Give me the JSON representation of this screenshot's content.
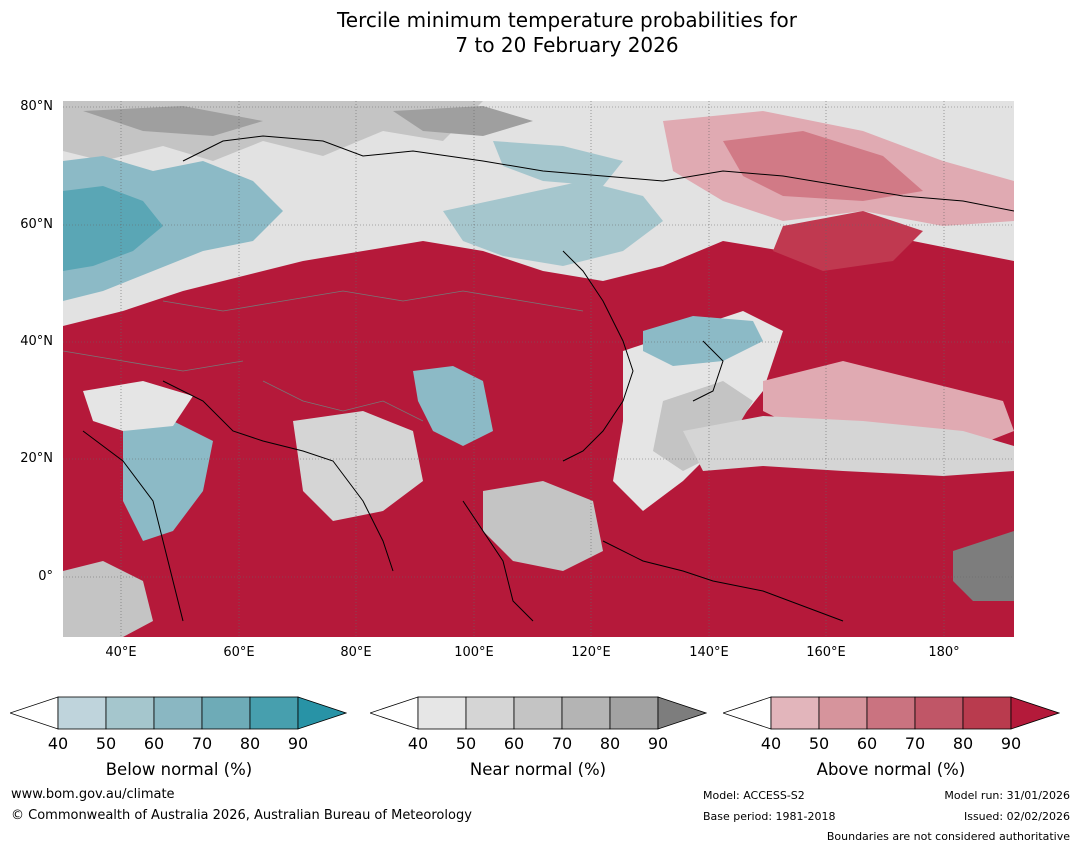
{
  "title_line1": "Tercile minimum temperature probabilities for",
  "title_line2": "7 to 20 February 2026",
  "map": {
    "lat_labels": [
      "80°N",
      "60°N",
      "40°N",
      "20°N",
      "0°"
    ],
    "lon_labels": [
      "40°E",
      "60°E",
      "80°E",
      "100°E",
      "120°E",
      "140°E",
      "160°E",
      "180°"
    ],
    "colors": {
      "above_90": "#b5193a",
      "above_80": "#c03950",
      "above_70": "#c75968",
      "above_60": "#d17a86",
      "above_50": "#e0aab2",
      "near_low": "#e5e5e5",
      "near_mid": "#c4c4c4",
      "near_high": "#9f9f9f",
      "near_max": "#7d7d7d",
      "below_50": "#c0d5dc",
      "below_70": "#8cbac6",
      "below_90": "#3c9aad"
    }
  },
  "colorbars": [
    {
      "label": "Below normal (%)",
      "ticks": [
        "40",
        "50",
        "60",
        "70",
        "80",
        "90"
      ],
      "colors": [
        "#ffffff",
        "#bfd4dc",
        "#a5c6cd",
        "#8ab7c2",
        "#6eabb7",
        "#479fae",
        "#2893a6"
      ]
    },
    {
      "label": "Near normal (%)",
      "ticks": [
        "40",
        "50",
        "60",
        "70",
        "80",
        "90"
      ],
      "colors": [
        "#ffffff",
        "#e6e6e6",
        "#d5d5d5",
        "#c4c4c4",
        "#b4b4b4",
        "#a2a2a2",
        "#7d7d7d"
      ]
    },
    {
      "label": "Above normal (%)",
      "ticks": [
        "40",
        "50",
        "60",
        "70",
        "80",
        "90"
      ],
      "colors": [
        "#ffffff",
        "#e2b5bb",
        "#d6949c",
        "#ca7380",
        "#c05667",
        "#b93b4e",
        "#b41a3a"
      ]
    }
  ],
  "footer": {
    "url": "www.bom.gov.au/climate",
    "copyright": "© Commonwealth of Australia 2026, Australian Bureau of Meteorology",
    "model": "Model: ACCESS-S2",
    "base_period": "Base period: 1981-2018",
    "model_run": "Model run: 31/01/2026",
    "issued": "Issued: 02/02/2026",
    "boundaries": "Boundaries are not considered authoritative"
  }
}
